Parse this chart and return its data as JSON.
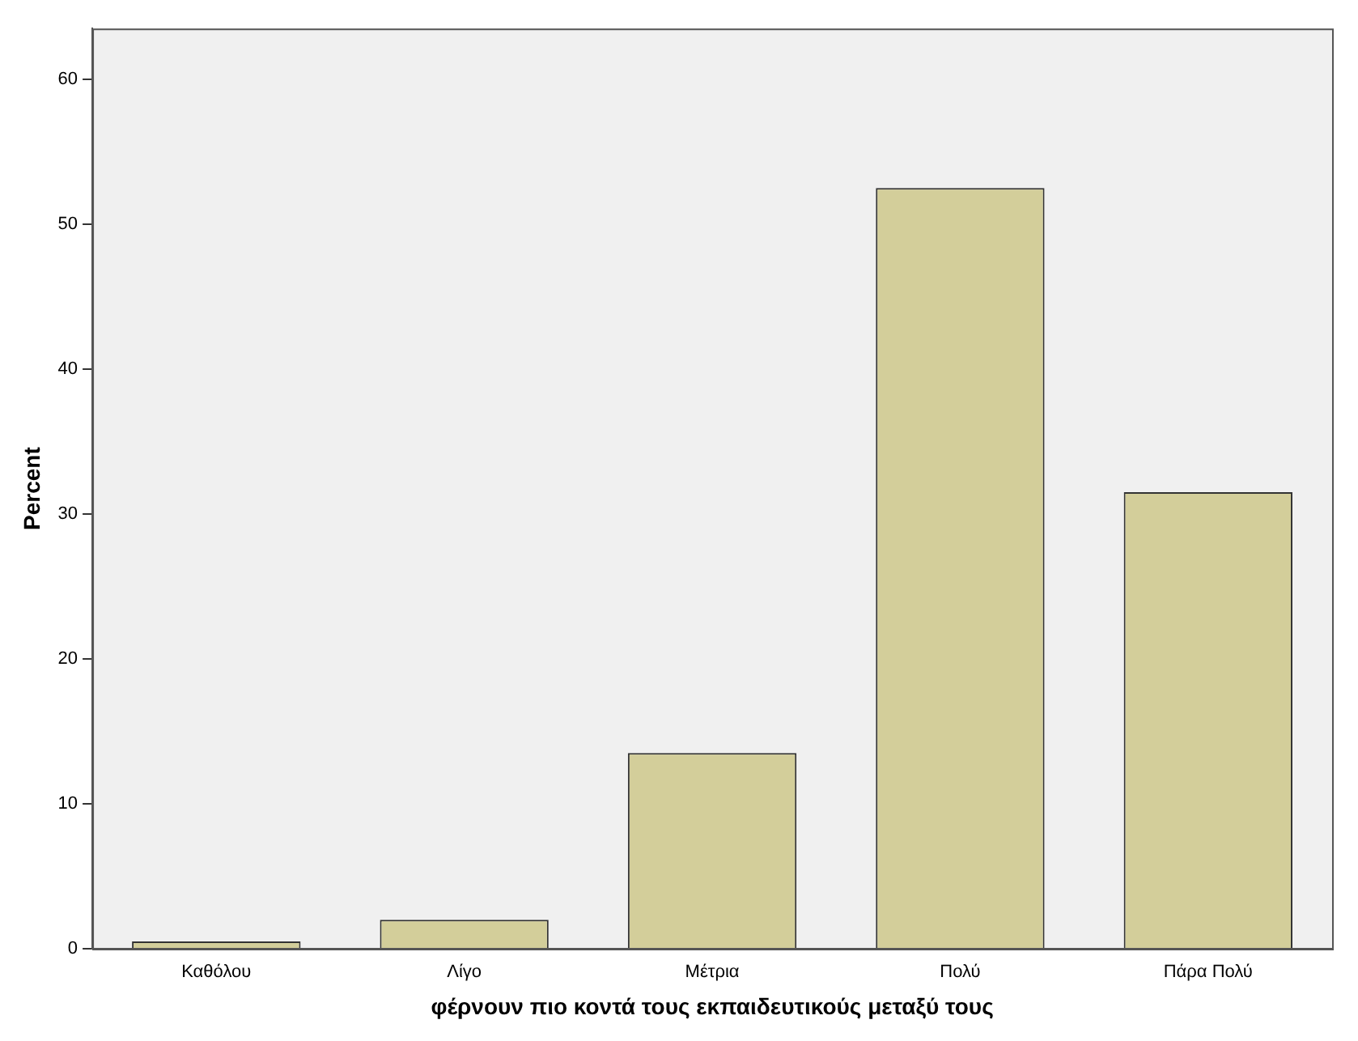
{
  "chart_data": {
    "type": "bar",
    "xlabel": "φέρνουν πιο κοντά τους εκπαιδευτικούς μεταξύ τους",
    "ylabel": "Percent",
    "categories": [
      "Καθόλου",
      "Λίγο",
      "Μέτρια",
      "Πολύ",
      "Πάρα Πολύ"
    ],
    "values": [
      0.5,
      2.0,
      13.5,
      52.5,
      31.5
    ],
    "color": "#d3ce9a",
    "ylim": [
      0,
      63.5
    ],
    "yticks": [
      0,
      10,
      20,
      30,
      40,
      50,
      60
    ],
    "grid": false,
    "legend": false
  }
}
